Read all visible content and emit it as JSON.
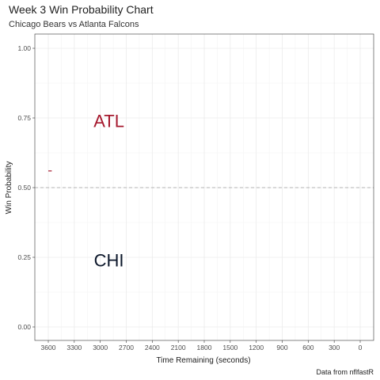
{
  "title": "Week 3 Win Probability Chart",
  "subtitle": "Chicago Bears vs Atlanta Falcons",
  "caption": "Data from nflfastR",
  "chart_data": {
    "type": "line",
    "title": "Week 3 Win Probability Chart",
    "subtitle": "Chicago Bears vs Atlanta Falcons",
    "xlabel": "Time Remaining (seconds)",
    "ylabel": "Win Probability",
    "xlim": [
      3600,
      0
    ],
    "ylim": [
      0,
      1
    ],
    "x_reversed": true,
    "x_ticks": [
      3600,
      3300,
      3000,
      2700,
      2400,
      2100,
      1800,
      1500,
      1200,
      900,
      600,
      300,
      0
    ],
    "y_ticks": [
      0.0,
      0.25,
      0.5,
      0.75,
      1.0
    ],
    "y_tick_labels": [
      "0.00",
      "0.25",
      "0.50",
      "0.75",
      "1.00"
    ],
    "grid": true,
    "reference_line": {
      "y": 0.5,
      "style": "dashed",
      "color": "#b3b3b3"
    },
    "series": [
      {
        "color": "#a6192e",
        "points": [
          [
            3600,
            0.56
          ],
          [
            3560,
            0.56
          ]
        ]
      }
    ],
    "annotations": [
      {
        "text": "ATL",
        "x": 2900,
        "y": 0.74,
        "color": "#a6192e"
      },
      {
        "text": "CHI",
        "x": 2900,
        "y": 0.24,
        "color": "#0b162a"
      }
    ]
  }
}
